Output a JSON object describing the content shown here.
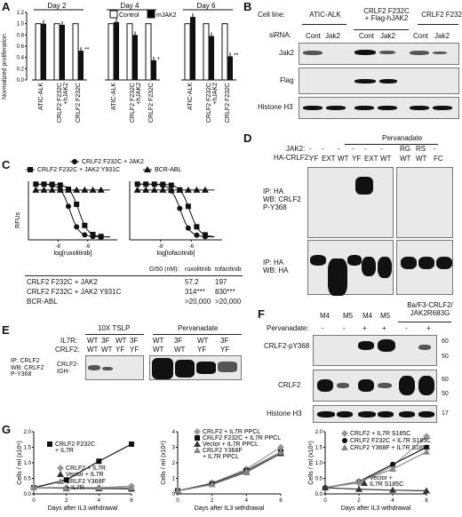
{
  "panels": {
    "A": {
      "label": "A",
      "ylabel": "Normalized proliferation",
      "legend": [
        {
          "name": "Control",
          "color": "#ffffff"
        },
        {
          "name": "mJAK2",
          "color": "#000000"
        }
      ],
      "yticks": [
        "0.0",
        "0.2",
        "0.4",
        "0.6",
        "0.8",
        "1.0",
        "1.2"
      ],
      "groups": [
        {
          "title": "Day 2",
          "categories": [
            "ATIC-ALK",
            "CRLF2 F232C\n+hJAK2",
            "CRLF2 F232C"
          ],
          "control": [
            1.0,
            1.0,
            1.0
          ],
          "mjak2": [
            1.0,
            0.98,
            0.52
          ],
          "sig": [
            "",
            "",
            "**"
          ]
        },
        {
          "title": "Day 4",
          "categories": [
            "ATIC-ALK",
            "CRLF2 F232C\n+hJAK2",
            "CRLF2 F232C"
          ],
          "control": [
            1.0,
            1.0,
            1.0
          ],
          "mjak2": [
            1.03,
            0.8,
            0.35
          ],
          "sig": [
            "",
            "",
            "*"
          ]
        },
        {
          "title": "Day 6",
          "categories": [
            "ATIC-ALK",
            "CRLF2 F232C\n+hJAK2",
            "CRLF2 F232C"
          ],
          "control": [
            1.0,
            1.0,
            1.0
          ],
          "mjak2": [
            1.12,
            0.78,
            0.42
          ],
          "sig": [
            "",
            "",
            "**"
          ]
        }
      ]
    },
    "B": {
      "label": "B",
      "cell_line_label": "Cell line:",
      "sirna_label": "siRNA:",
      "cell_lines": [
        "ATIC-ALK",
        "CRLF2 F232C\n+ Flag-hJAK2",
        "CRLF2 F232C"
      ],
      "sirna": [
        "Cont",
        "Jak2",
        "Cont",
        "Jak2",
        "Cont",
        "Jak2"
      ],
      "rows": [
        "Jak2",
        "Flag",
        "Histone H3"
      ]
    },
    "C": {
      "label": "C",
      "legend": [
        "CRLF2 F232C + JAK2",
        "CRLF2 F232C + JAK2 Y931C",
        "BCR-ABL"
      ],
      "ylabel": "RFUs",
      "xlabels": [
        "log[ruxolitinib]",
        "log[tofacitinib]"
      ],
      "xticks": [
        "-8",
        "-6"
      ],
      "table": {
        "header": [
          "GI50 (nM):",
          "ruxolitinib",
          "tofacitinib"
        ],
        "rows": [
          [
            "CRLF2 F232C + JAK2",
            "57.2",
            "197"
          ],
          [
            "CRLF2 F232C + JAK2 Y931C",
            "314***",
            "830***"
          ],
          [
            "BCR-ABL",
            ">20,000",
            ">20,000"
          ]
        ]
      }
    },
    "D": {
      "label": "D",
      "pervanadate": "Pervanadate",
      "jak2_label": "JAK2:",
      "crlf2_label": "HA-CRLF2:",
      "jak2": [
        "-",
        "-",
        "-",
        "-",
        "-",
        "-",
        "RG",
        "RS",
        "-"
      ],
      "crlf2": [
        "YF",
        "EXT",
        "WT",
        "YF",
        "EXT",
        "WT",
        "WT",
        "WT",
        "FC"
      ],
      "blot1": "IP: HA\nWB: CRLF2\nP-Y368",
      "blot2": "IP: HA\nWB: HA"
    },
    "E": {
      "label": "E",
      "tslp": "10X TSLP",
      "pervanadate": "Pervanadate",
      "il7r_label": "IL7R:",
      "crlf2_label": "CRLF2:",
      "il7r": [
        "WT",
        "3F",
        "WT",
        "3F",
        "WT",
        "3F",
        "WT",
        "3F"
      ],
      "crlf2": [
        "WT",
        "WT",
        "YF",
        "YF",
        "WT",
        "WT",
        "YF",
        "YF"
      ],
      "blot": "IP: CRLF2\nWB: CRLF2\nP-Y368",
      "band": "CRLF2-\nIGH-"
    },
    "F": {
      "label": "F",
      "cells": [
        "M4",
        "M5",
        "M4",
        "M5"
      ],
      "group": "Ba/F3-CRLF2/\nJAK2R683G",
      "pervanadate_label": "Pervanadate:",
      "pervanadate": [
        "-",
        "-",
        "+",
        "+",
        "-",
        "+"
      ],
      "rows": [
        "CRLF2-pY368",
        "CRLF2",
        "Histone H3"
      ],
      "mw": [
        "60",
        "50",
        "60",
        "50",
        "17"
      ]
    },
    "G": {
      "label": "G",
      "ylabel": "Cells / ml (x10⁶)",
      "xlabel": "Days after IL3 withdrawal",
      "xticks": [
        "0",
        "2",
        "4",
        "6"
      ],
      "charts": [
        {
          "yticks": [
            "0.0",
            "0.5",
            "1.0",
            "1.5",
            "2.0"
          ],
          "ymax": 2.0,
          "legend": [
            "CRLF2 F232C\n+ IL7R",
            "CRLF2 + IL7R",
            "Vector + IL7R",
            "CRLF2 Y368F\n+ IL7R"
          ],
          "series": [
            {
              "name": "CRLF2 F232C + IL7R",
              "marker": "square",
              "color": "#111",
              "values": [
                0.2,
                0.45,
                1.05,
                1.6
              ]
            },
            {
              "name": "CRLF2 + IL7R",
              "marker": "diamond",
              "color": "#999",
              "values": [
                0.2,
                0.2,
                0.2,
                0.25
              ]
            },
            {
              "name": "Vector + IL7R",
              "marker": "triangle",
              "color": "#333",
              "values": [
                0.2,
                0.18,
                0.17,
                0.16
              ]
            },
            {
              "name": "CRLF2 Y368F + IL7R",
              "marker": "triangle",
              "color": "#888",
              "values": [
                0.2,
                0.2,
                0.2,
                0.2
              ]
            }
          ]
        },
        {
          "yticks": [
            "0",
            "1",
            "2",
            "3",
            "4"
          ],
          "ymax": 4,
          "legend": [
            "CRLF2 + IL7R PPCL",
            "CRLF2 F232C + IL7R PPCL",
            "Vector + IL7R PPCL",
            "CRLF2 Y368F\n+ IL7R PPCL"
          ],
          "series": [
            {
              "name": "CRLF2 + IL7R PPCL",
              "marker": "diamond",
              "color": "#999",
              "values": [
                0.2,
                0.7,
                1.6,
                3.0
              ]
            },
            {
              "name": "CRLF2 F232C + IL7R PPCL",
              "marker": "square",
              "color": "#111",
              "values": [
                0.2,
                0.65,
                1.5,
                2.7
              ]
            },
            {
              "name": "Vector + IL7R PPCL",
              "marker": "triangle",
              "color": "#333",
              "values": [
                0.2,
                0.6,
                1.4,
                2.6
              ]
            },
            {
              "name": "CRLF2 Y368F + IL7R PPCL",
              "marker": "triangle",
              "color": "#888",
              "values": [
                0.2,
                0.6,
                1.45,
                2.7
              ]
            }
          ]
        },
        {
          "yticks": [
            "0.0",
            "0.5",
            "1.0",
            "1.5",
            "2.0"
          ],
          "ymax": 2.0,
          "legend": [
            "CRLF2 + IL7R S185C",
            "CRLF2 F232C + IL7R S185C",
            "CRLF2 Y368F + IL7R S185C"
          ],
          "legend2": "Vector +\nIL7R S185C",
          "series": [
            {
              "name": "CRLF2 + IL7R S185C",
              "marker": "diamond",
              "color": "#999",
              "values": [
                0.2,
                0.35,
                0.9,
                1.85
              ]
            },
            {
              "name": "CRLF2 F232C + IL7R S185C",
              "marker": "circle",
              "color": "#111",
              "values": [
                0.2,
                0.4,
                0.95,
                1.5
              ]
            },
            {
              "name": "CRLF2 Y368F + IL7R S185C",
              "marker": "triangle",
              "color": "#888",
              "values": [
                0.2,
                0.4,
                0.8,
                1.35
              ]
            },
            {
              "name": "Vector + IL7R S185C",
              "marker": "triangle",
              "color": "#333",
              "values": [
                0.2,
                0.15,
                0.12,
                0.1
              ]
            }
          ]
        }
      ]
    }
  }
}
